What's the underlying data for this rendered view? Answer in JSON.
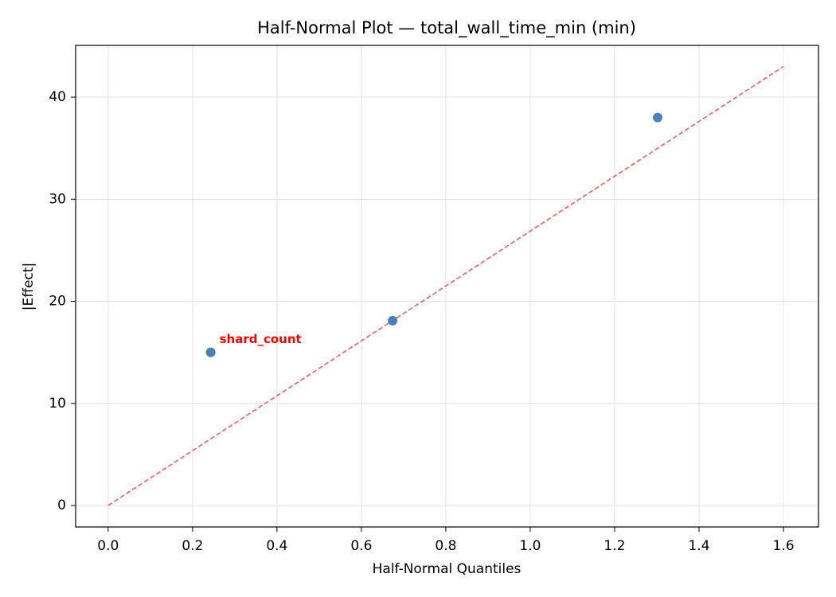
{
  "chart_data": {
    "type": "scatter",
    "title": "Half-Normal Plot — total_wall_time_min (min)",
    "x_label": "Half-Normal Quantiles",
    "y_label": "|Effect|",
    "xlim": [
      -0.077,
      1.683
    ],
    "ylim": [
      -2.1,
      45.07
    ],
    "xticks": [
      {
        "value": 0,
        "label": "0.0"
      },
      0.2,
      0.4,
      0.6,
      0.8,
      {
        "value": 1,
        "label": "1.0"
      },
      1.2,
      1.4,
      1.6
    ],
    "yticks": [
      0,
      10,
      20,
      30,
      40
    ],
    "grid": true,
    "series": [
      {
        "type": "scatter",
        "color": "#4682b4",
        "x": [
          0.243,
          0.674,
          1.302
        ],
        "values": [
          15.0,
          18.1,
          38.0
        ],
        "point_labels": [
          "shard_count",
          null,
          null
        ],
        "label_color": "#ff0000"
      },
      {
        "type": "line",
        "color": "#f06060",
        "dashed": true,
        "x": [
          0,
          1.6
        ],
        "values": [
          0,
          43.0
        ]
      }
    ]
  }
}
